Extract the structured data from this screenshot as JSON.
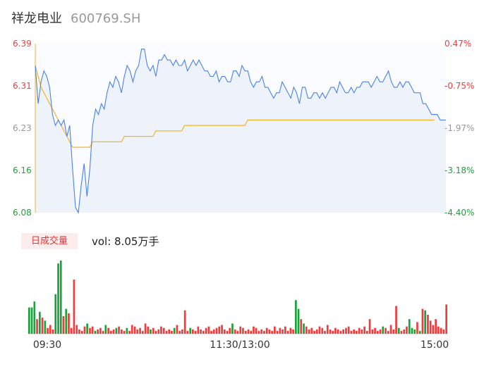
{
  "header": {
    "name": "祥龙电业",
    "code": "600769.SH"
  },
  "colors": {
    "up": "#f23b3b",
    "down": "#1aa33a",
    "neutral": "#999999",
    "price_line": "#4a82e8",
    "avg_line": "#f5b323",
    "area": "#eef2fb"
  },
  "chart_data": [
    {
      "type": "line",
      "title": "",
      "left_ticks": [
        "6.39",
        "6.31",
        "6.23",
        "6.16",
        "6.08"
      ],
      "right_ticks": [
        "0.47%",
        "-0.75%",
        "-1.97%",
        "-3.18%",
        "-4.40%"
      ],
      "ylim": [
        6.08,
        6.39
      ],
      "series": [
        {
          "values": [
            6.35,
            6.28,
            6.32,
            6.34,
            6.33,
            6.31,
            6.26,
            6.24,
            6.25,
            6.24,
            6.25,
            6.22,
            6.24,
            6.16,
            6.09,
            6.08,
            6.13,
            6.17,
            6.11,
            6.16,
            6.24,
            6.27,
            6.26,
            6.28,
            6.27,
            6.3,
            6.32,
            6.31,
            6.33,
            6.32,
            6.3,
            6.33,
            6.35,
            6.34,
            6.32,
            6.34,
            6.35,
            6.38,
            6.38,
            6.35,
            6.34,
            6.35,
            6.33,
            6.36,
            6.36,
            6.37,
            6.36,
            6.36,
            6.35,
            6.36,
            6.35,
            6.35,
            6.36,
            6.34,
            6.35,
            6.36,
            6.35,
            6.36,
            6.35,
            6.34,
            6.34,
            6.33,
            6.33,
            6.34,
            6.32,
            6.33,
            6.33,
            6.32,
            6.32,
            6.34,
            6.34,
            6.33,
            6.35,
            6.34,
            6.34,
            6.32,
            6.31,
            6.32,
            6.32,
            6.33,
            6.31,
            6.31,
            6.3,
            6.29,
            6.3,
            6.3,
            6.32,
            6.31,
            6.3,
            6.29,
            6.31,
            6.3,
            6.28,
            6.31,
            6.31,
            6.29,
            6.29,
            6.3,
            6.3,
            6.29,
            6.3,
            6.29,
            6.3,
            6.31,
            6.31,
            6.3,
            6.32,
            6.31,
            6.3,
            6.3,
            6.31,
            6.3,
            6.31,
            6.31,
            6.32,
            6.32,
            6.32,
            6.31,
            6.32,
            6.33,
            6.32,
            6.32,
            6.33,
            6.34,
            6.32,
            6.31,
            6.31,
            6.32,
            6.31,
            6.32,
            6.32,
            6.31,
            6.3,
            6.3,
            6.3,
            6.28,
            6.28,
            6.27,
            6.26,
            6.26,
            6.26,
            6.25,
            6.25,
            6.25
          ]
        },
        {
          "values": [
            6.35,
            6.33,
            6.31,
            6.3,
            6.29,
            6.28,
            6.27,
            6.26,
            6.25,
            6.24,
            6.23,
            6.22,
            6.21,
            6.2,
            6.2,
            6.2,
            6.2,
            6.2,
            6.2,
            6.2,
            6.21,
            6.21,
            6.21,
            6.21,
            6.21,
            6.21,
            6.21,
            6.21,
            6.21,
            6.21,
            6.21,
            6.22,
            6.22,
            6.22,
            6.22,
            6.22,
            6.22,
            6.22,
            6.22,
            6.22,
            6.22,
            6.22,
            6.23,
            6.23,
            6.23,
            6.23,
            6.23,
            6.23,
            6.23,
            6.23,
            6.23,
            6.23,
            6.24,
            6.24,
            6.24,
            6.24,
            6.24,
            6.24,
            6.24,
            6.24,
            6.24,
            6.24,
            6.24,
            6.24,
            6.24,
            6.24,
            6.24,
            6.24,
            6.24,
            6.24,
            6.24,
            6.24,
            6.24,
            6.24,
            6.25,
            6.25,
            6.25,
            6.25,
            6.25,
            6.25,
            6.25,
            6.25,
            6.25,
            6.25,
            6.25,
            6.25,
            6.25,
            6.25,
            6.25,
            6.25,
            6.25,
            6.25,
            6.25,
            6.25,
            6.25,
            6.25,
            6.25,
            6.25,
            6.25,
            6.25,
            6.25,
            6.25,
            6.25,
            6.25,
            6.25,
            6.25,
            6.25,
            6.25,
            6.25,
            6.25,
            6.25,
            6.25,
            6.25,
            6.25,
            6.25,
            6.25,
            6.25,
            6.25,
            6.25,
            6.25,
            6.25,
            6.25,
            6.25,
            6.25,
            6.25,
            6.25,
            6.25,
            6.25,
            6.25,
            6.25,
            6.25,
            6.25,
            6.25,
            6.25,
            6.25,
            6.25,
            6.25,
            6.25,
            6.25,
            6.25
          ]
        }
      ]
    },
    {
      "type": "bar",
      "title": "日成交量",
      "summary": "vol: 8.05万手",
      "x_ticks": [
        "09:30",
        "11:30/13:00",
        "15:00"
      ],
      "values": [
        36,
        36,
        44,
        20,
        30,
        22,
        18,
        8,
        12,
        6,
        54,
        96,
        100,
        24,
        34,
        28,
        8,
        74,
        12,
        6,
        4,
        10,
        14,
        8,
        10,
        4,
        6,
        8,
        4,
        12,
        8,
        4,
        6,
        8,
        10,
        6,
        4,
        8,
        4,
        12,
        10,
        6,
        8,
        4,
        14,
        10,
        6,
        8,
        4,
        6,
        10,
        8,
        4,
        6,
        4,
        8,
        12,
        4,
        6,
        32,
        4,
        8,
        6,
        4,
        10,
        6,
        4,
        8,
        10,
        4,
        6,
        8,
        10,
        12,
        6,
        4,
        8,
        14,
        6,
        4,
        10,
        8,
        4,
        6,
        4,
        10,
        8,
        4,
        6,
        4,
        8,
        6,
        4,
        10,
        4,
        8,
        6,
        10,
        4,
        8,
        6,
        46,
        34,
        20,
        14,
        10,
        6,
        8,
        4,
        6,
        10,
        8,
        4,
        12,
        6,
        4,
        8,
        6,
        4,
        6,
        8,
        10,
        4,
        6,
        4,
        8,
        6,
        10,
        4,
        20,
        6,
        8,
        4,
        6,
        10,
        8,
        4,
        12,
        6,
        38,
        8,
        4,
        6,
        10,
        20,
        8,
        6,
        16,
        4,
        34,
        32,
        26,
        18,
        12,
        20,
        10,
        8,
        6,
        40
      ],
      "colors": [
        "d",
        "d",
        "d",
        "u",
        "d",
        "u",
        "d",
        "u",
        "u",
        "u",
        "d",
        "d",
        "d",
        "u",
        "d",
        "u",
        "u",
        "u",
        "u",
        "u",
        "u",
        "u",
        "d",
        "u",
        "u",
        "d",
        "u",
        "u",
        "u",
        "d",
        "u",
        "u",
        "u",
        "d",
        "u",
        "u",
        "u",
        "d",
        "u",
        "u",
        "u",
        "u",
        "u",
        "u",
        "u",
        "u",
        "d",
        "u",
        "u",
        "u",
        "u",
        "u",
        "u",
        "u",
        "u",
        "d",
        "u",
        "u",
        "u",
        "u",
        "u",
        "d",
        "u",
        "u",
        "u",
        "u",
        "u",
        "u",
        "u",
        "u",
        "u",
        "u",
        "u",
        "u",
        "u",
        "u",
        "u",
        "d",
        "u",
        "u",
        "u",
        "u",
        "u",
        "u",
        "u",
        "u",
        "u",
        "u",
        "u",
        "u",
        "u",
        "u",
        "u",
        "u",
        "u",
        "u",
        "u",
        "u",
        "u",
        "u",
        "u",
        "d",
        "d",
        "u",
        "d",
        "u",
        "u",
        "u",
        "u",
        "u",
        "u",
        "u",
        "u",
        "u",
        "u",
        "u",
        "u",
        "u",
        "u",
        "u",
        "u",
        "u",
        "u",
        "u",
        "u",
        "u",
        "u",
        "u",
        "u",
        "u",
        "u",
        "u",
        "u",
        "u",
        "d",
        "u",
        "u",
        "u",
        "u",
        "u",
        "d",
        "u",
        "u",
        "u",
        "d",
        "d",
        "d",
        "u",
        "d",
        "u",
        "d",
        "u",
        "u",
        "u",
        "u",
        "u"
      ]
    }
  ]
}
